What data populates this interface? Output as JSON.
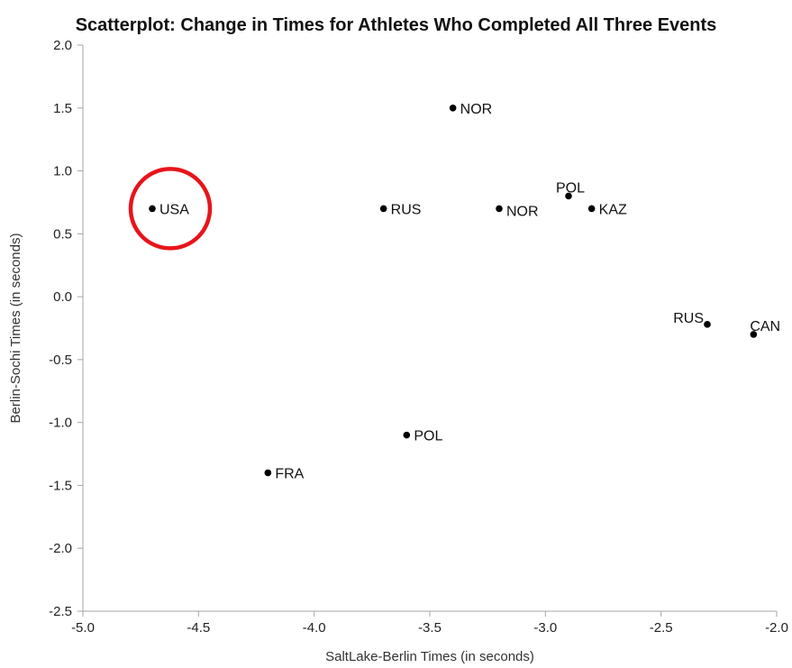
{
  "chart_data": {
    "type": "scatter",
    "title": "Scatterplot: Change in Times for Athletes Who Completed All Three Events",
    "xlabel": "SaltLake-Berlin Times (in seconds)",
    "ylabel": "Berlin-Sochi Times (in seconds)",
    "xlim": [
      -5.0,
      -2.0
    ],
    "ylim": [
      -2.5,
      2.0
    ],
    "xticks": [
      "-5.0",
      "-4.5",
      "-4.0",
      "-3.5",
      "-3.0",
      "-2.5",
      "-2.0"
    ],
    "yticks": [
      "-2.5",
      "-2.0",
      "-1.5",
      "-1.0",
      "-0.5",
      "0.0",
      "0.5",
      "1.0",
      "1.5",
      "2.0"
    ],
    "grid": false,
    "points": [
      {
        "label": "USA",
        "x": -4.7,
        "y": 0.7
      },
      {
        "label": "RUS",
        "x": -3.7,
        "y": 0.7
      },
      {
        "label": "NOR",
        "x": -3.4,
        "y": 1.5
      },
      {
        "label": "NOR",
        "x": -3.2,
        "y": 0.7
      },
      {
        "label": "POL",
        "x": -2.9,
        "y": 0.8
      },
      {
        "label": "KAZ",
        "x": -2.8,
        "y": 0.7
      },
      {
        "label": "RUS",
        "x": -2.3,
        "y": -0.22
      },
      {
        "label": "CAN",
        "x": -2.1,
        "y": -0.3
      },
      {
        "label": "POL",
        "x": -3.6,
        "y": -1.1
      },
      {
        "label": "FRA",
        "x": -4.2,
        "y": -1.4
      }
    ],
    "highlight": {
      "label": "USA",
      "shape": "circle",
      "color": "#e8141b"
    },
    "point_color": "#000000",
    "axis_color": "#a6a6a6"
  }
}
